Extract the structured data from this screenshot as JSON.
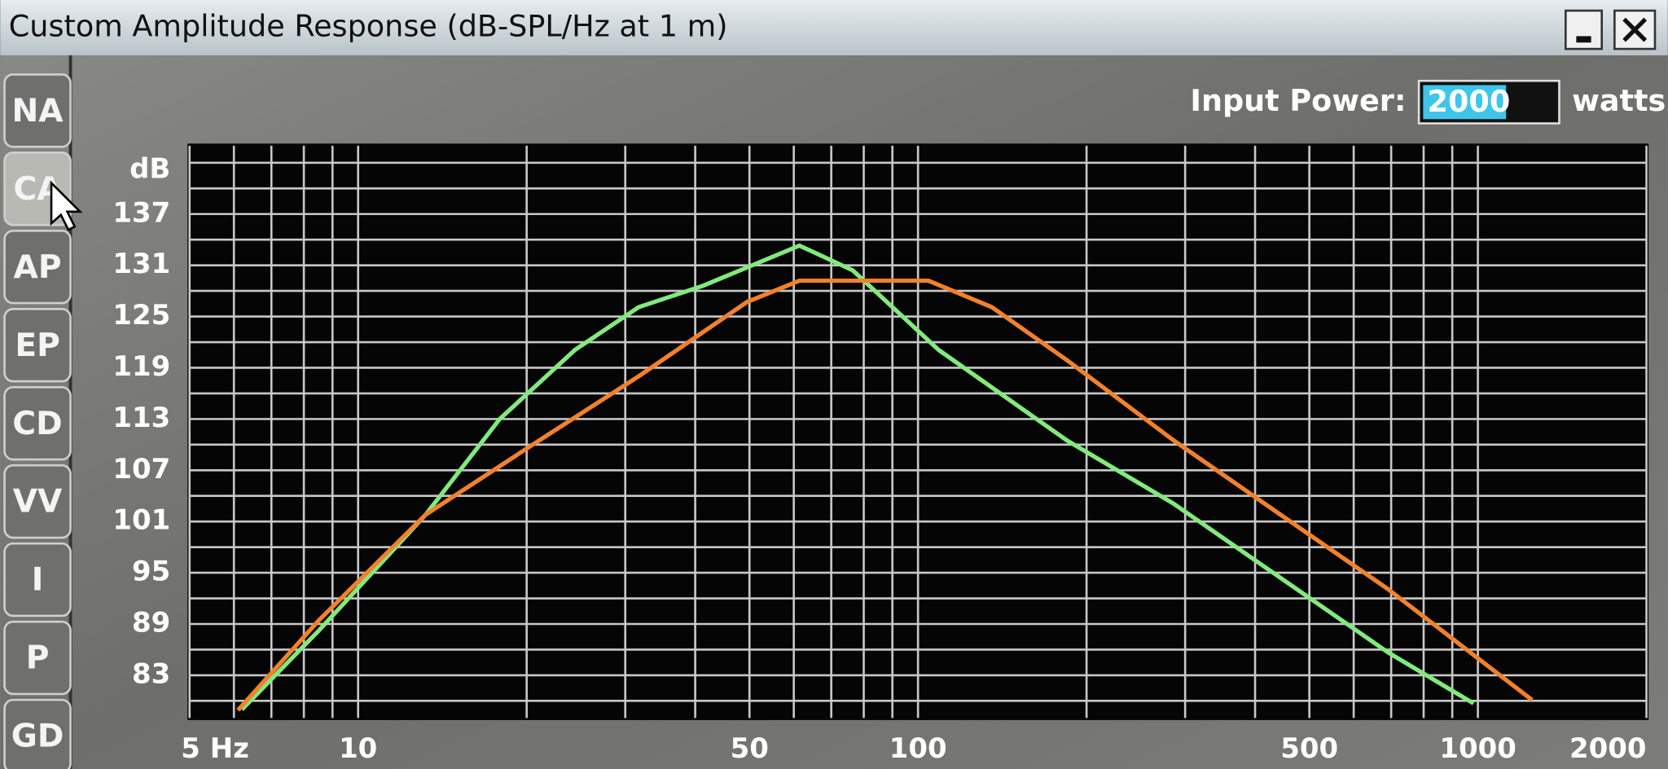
{
  "window": {
    "title": "Custom Amplitude Response (dB-SPL/Hz at 1 m)"
  },
  "tabs": [
    "NA",
    "CA",
    "AP",
    "EP",
    "CD",
    "VV",
    "I",
    "P",
    "GD"
  ],
  "selected_tab": 1,
  "input": {
    "label": "Input Power:",
    "value": "2000",
    "unit": "watts"
  },
  "chart_data": {
    "type": "line",
    "ylabel": "dB",
    "xlog": true,
    "grid": true,
    "xlim": [
      5,
      2000
    ],
    "xticks": [
      {
        "value": 5,
        "label": "5 Hz"
      },
      10,
      50,
      100,
      500,
      1000,
      2000
    ],
    "xgrid": [
      6,
      7,
      8,
      9,
      20,
      30,
      40,
      60,
      70,
      80,
      90,
      200,
      300,
      400,
      600,
      700,
      800,
      900
    ],
    "ylim": [
      78,
      145
    ],
    "yticks": [
      83,
      89,
      95,
      101,
      107,
      113,
      119,
      125,
      131,
      137
    ],
    "ygrid": [
      80,
      86,
      92,
      98,
      104,
      110,
      116,
      122,
      128,
      134,
      140,
      143
    ],
    "series": [
      {
        "color": "#82ea7c",
        "x": [
          6.2,
          8.5,
          13.2,
          17.9,
          24.4,
          31.7,
          41.3,
          61.4,
          76.5,
          108.8,
          184.4,
          286,
          444,
          690,
          982
        ],
        "values": [
          79,
          88.2,
          101.8,
          113,
          121.1,
          126.1,
          128.6,
          133.3,
          130.4,
          121.1,
          110.5,
          103.1,
          94.4,
          85.7,
          79.7
        ]
      },
      {
        "color": "#f2812c",
        "x": [
          6.1,
          8.5,
          13.2,
          20.4,
          31.7,
          49.5,
          61.4,
          104.4,
          135.5,
          184.4,
          286,
          444,
          690,
          1250
        ],
        "values": [
          78.9,
          89.4,
          101.8,
          109.9,
          118,
          126.7,
          129.2,
          129.2,
          126.1,
          119.9,
          110.5,
          101.8,
          93.1,
          80.1
        ]
      }
    ]
  }
}
